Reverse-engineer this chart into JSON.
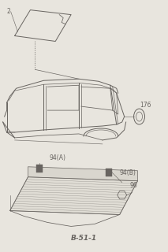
{
  "bg_color": "#e8e5de",
  "line_color": "#686460",
  "title": "B-51-1",
  "labels": {
    "part2": "2",
    "part94A": "94(A)",
    "part94B": "94(B)",
    "part96": "96",
    "part176": "176"
  },
  "label_fontsize": 5.5,
  "title_fontsize": 6.5
}
